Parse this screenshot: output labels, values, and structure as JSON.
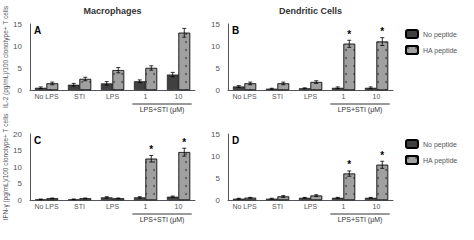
{
  "chart_data": [
    {
      "type": "bar",
      "title": "Macrophages",
      "ylabel": "IL-2 (pg/mL)/100 clonotype+ T cells",
      "categories": [
        "No LPS",
        "STI",
        "LPS",
        "1",
        "10"
      ],
      "series": [
        {
          "name": "No peptide",
          "color": "#404040",
          "values": [
            0.5,
            1.2,
            1.5,
            2.0,
            3.5
          ],
          "errors": [
            0.2,
            0.3,
            0.4,
            0.3,
            0.5
          ]
        },
        {
          "name": "HA peptide",
          "color": "#a0a0a0",
          "values": [
            1.5,
            2.5,
            4.5,
            5.0,
            13.0
          ],
          "errors": [
            0.3,
            0.4,
            0.6,
            0.5,
            1.0
          ]
        }
      ],
      "ylim": [
        0,
        15
      ],
      "yticks": [
        0,
        5,
        10,
        15
      ],
      "grid": false,
      "annotations": [
        {
          "text": "A"
        },
        {
          "text": "LPS+STI (μM)",
          "categories": [
            "1",
            "10"
          ]
        }
      ]
    },
    {
      "type": "bar",
      "title": "Dendritic Cells",
      "categories": [
        "No LPS",
        "STI",
        "LPS",
        "1",
        "10"
      ],
      "series": [
        {
          "name": "No peptide",
          "color": "#404040",
          "values": [
            0.8,
            0.3,
            0.4,
            0.5,
            0.5
          ],
          "errors": [
            0.2,
            0.1,
            0.1,
            0.2,
            0.2
          ]
        },
        {
          "name": "HA peptide",
          "color": "#a0a0a0",
          "values": [
            1.5,
            1.5,
            1.8,
            10.5,
            11.0
          ],
          "errors": [
            0.3,
            0.3,
            0.3,
            0.8,
            0.9
          ]
        }
      ],
      "ylim": [
        0,
        15
      ],
      "yticks": [
        0,
        5,
        10,
        15
      ],
      "grid": false,
      "legend": "upper right",
      "annotations": [
        {
          "text": "B"
        },
        {
          "text": "LPS+STI (μM)",
          "categories": [
            "1",
            "10"
          ]
        },
        {
          "text": "*",
          "series": "HA peptide",
          "category": "1"
        },
        {
          "text": "*",
          "series": "HA peptide",
          "category": "10"
        }
      ]
    },
    {
      "type": "bar",
      "ylabel": "IFN-γ (pg/mL)/100 clonotype+ T cells",
      "categories": [
        "No LPS",
        "STI",
        "LPS",
        "1",
        "10"
      ],
      "series": [
        {
          "name": "No peptide",
          "color": "#404040",
          "values": [
            0.2,
            0.2,
            0.8,
            0.8,
            1.0
          ],
          "errors": [
            0.1,
            0.1,
            0.2,
            0.2,
            0.2
          ]
        },
        {
          "name": "HA peptide",
          "color": "#a0a0a0",
          "values": [
            0.5,
            0.5,
            0.5,
            12.5,
            14.5
          ],
          "errors": [
            0.1,
            0.1,
            0.1,
            1.0,
            1.2
          ]
        }
      ],
      "ylim": [
        0,
        20
      ],
      "yticks": [
        0,
        5,
        10,
        15,
        20
      ],
      "grid": false,
      "annotations": [
        {
          "text": "C"
        },
        {
          "text": "LPS+STI (μM)",
          "categories": [
            "1",
            "10"
          ]
        },
        {
          "text": "*",
          "series": "HA peptide",
          "category": "1"
        },
        {
          "text": "*",
          "series": "HA peptide",
          "category": "10"
        }
      ]
    },
    {
      "type": "bar",
      "categories": [
        "No LPS",
        "STI",
        "LPS",
        "1",
        "10"
      ],
      "series": [
        {
          "name": "No peptide",
          "color": "#404040",
          "values": [
            0.3,
            0.3,
            0.5,
            0.5,
            0.5
          ],
          "errors": [
            0.1,
            0.1,
            0.1,
            0.1,
            0.1
          ]
        },
        {
          "name": "HA peptide",
          "color": "#a0a0a0",
          "values": [
            0.5,
            0.8,
            1.0,
            6.0,
            8.0
          ],
          "errors": [
            0.1,
            0.2,
            0.2,
            0.6,
            0.8
          ]
        }
      ],
      "ylim": [
        0,
        15
      ],
      "yticks": [
        0,
        5,
        10,
        15
      ],
      "grid": false,
      "legend": "upper right",
      "annotations": [
        {
          "text": "D"
        },
        {
          "text": "LPS+STI (μM)",
          "categories": [
            "1",
            "10"
          ]
        },
        {
          "text": "*",
          "series": "HA peptide",
          "category": "1"
        },
        {
          "text": "*",
          "series": "HA peptide",
          "category": "10"
        }
      ]
    }
  ]
}
